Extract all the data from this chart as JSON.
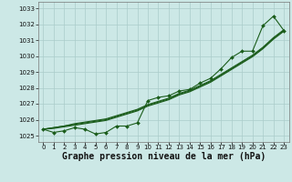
{
  "x": [
    0,
    1,
    2,
    3,
    4,
    5,
    6,
    7,
    8,
    9,
    10,
    11,
    12,
    13,
    14,
    15,
    16,
    17,
    18,
    19,
    20,
    21,
    22,
    23
  ],
  "line_actual": [
    1025.4,
    1025.2,
    1025.3,
    1025.5,
    1025.4,
    1025.1,
    1025.2,
    1025.6,
    1025.6,
    1025.8,
    1027.2,
    1027.4,
    1027.5,
    1027.8,
    1027.9,
    1028.3,
    1028.6,
    1029.2,
    1029.9,
    1030.3,
    1030.3,
    1031.9,
    1032.5,
    1031.6
  ],
  "line_smooth1": [
    1025.4,
    1025.5,
    1025.6,
    1025.7,
    1025.8,
    1025.9,
    1026.0,
    1026.2,
    1026.4,
    1026.6,
    1026.9,
    1027.1,
    1027.3,
    1027.6,
    1027.8,
    1028.1,
    1028.4,
    1028.8,
    1029.2,
    1029.6,
    1030.0,
    1030.5,
    1031.1,
    1031.6
  ],
  "line_smooth2": [
    1025.4,
    1025.5,
    1025.6,
    1025.75,
    1025.85,
    1025.95,
    1026.05,
    1026.25,
    1026.45,
    1026.65,
    1026.95,
    1027.15,
    1027.35,
    1027.65,
    1027.85,
    1028.15,
    1028.45,
    1028.85,
    1029.25,
    1029.65,
    1030.05,
    1030.55,
    1031.15,
    1031.65
  ],
  "line_smooth3": [
    1025.4,
    1025.45,
    1025.55,
    1025.65,
    1025.75,
    1025.85,
    1025.95,
    1026.15,
    1026.35,
    1026.55,
    1026.85,
    1027.05,
    1027.25,
    1027.55,
    1027.75,
    1028.05,
    1028.35,
    1028.75,
    1029.15,
    1029.55,
    1029.95,
    1030.45,
    1031.05,
    1031.55
  ],
  "color": "#1a5c1a",
  "bg_color": "#cce8e6",
  "grid_color": "#aaccca",
  "ylim_min": 1024.6,
  "ylim_max": 1033.4,
  "yticks": [
    1025,
    1026,
    1027,
    1028,
    1029,
    1030,
    1031,
    1032,
    1033
  ],
  "xlabel": "Graphe pression niveau de la mer (hPa)",
  "marker": "D",
  "marker_size": 2.0,
  "linewidth": 0.8,
  "xlabel_fontsize": 7.0,
  "tick_fontsize": 5.0
}
